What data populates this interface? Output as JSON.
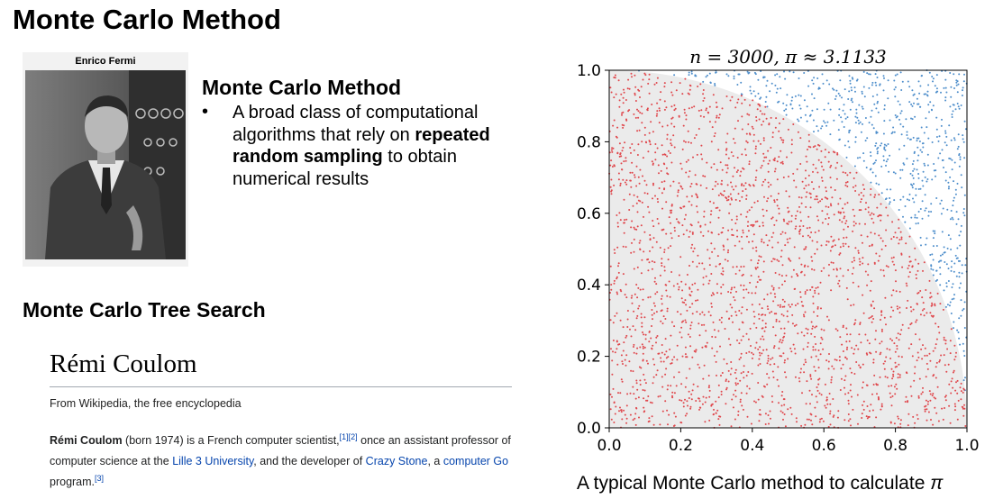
{
  "slide": {
    "title": "Monte Carlo Method"
  },
  "photo": {
    "caption": "Enrico Fermi"
  },
  "monte_carlo": {
    "heading": "Monte Carlo Method",
    "bullet": "•",
    "text_before": "A broad class of computational algorithms that rely on ",
    "text_bold": "repeated random sampling",
    "text_after": " to obtain numerical results"
  },
  "mcts": {
    "heading": "Monte Carlo Tree Search"
  },
  "wiki": {
    "title": "Rémi Coulom",
    "tagline": "From Wikipedia, the free encyclopedia",
    "name": "Rémi Coulom",
    "text1": " (born 1974) is a French computer scientist,",
    "ref1": "[1][2]",
    "text2": " once an assistant professor of computer science at the ",
    "link_univ": "Lille 3 University",
    "text3": ", and the developer of ",
    "link_crazy": "Crazy Stone",
    "text4": ", a ",
    "link_go": "computer Go",
    "text5": " program.",
    "ref3": "[3]"
  },
  "chart_caption": {
    "text": "A typical Monte Carlo method to calculate ",
    "pi": "π"
  },
  "chart_data": {
    "type": "scatter",
    "title": "n = 3000, π ≈ 3.1133",
    "n": 3000,
    "pi_estimate": 3.1133,
    "xlim": [
      0.0,
      1.0
    ],
    "ylim": [
      0.0,
      1.0
    ],
    "xticks": [
      "0.0",
      "0.2",
      "0.4",
      "0.6",
      "0.8",
      "1.0"
    ],
    "yticks": [
      "0.0",
      "0.2",
      "0.4",
      "0.6",
      "0.8",
      "1.0"
    ],
    "xlabel": "",
    "ylabel": "",
    "region": "quarter circle x² + y² ≤ 1",
    "series": [
      {
        "rule": "inside quarter circle",
        "color": "#e0474c",
        "count": 2335
      },
      {
        "rule": "outside quarter circle",
        "color": "#4e8ecb",
        "count": 665
      }
    ],
    "quarter_circle_fill": "#ebebeb",
    "grid": false
  }
}
